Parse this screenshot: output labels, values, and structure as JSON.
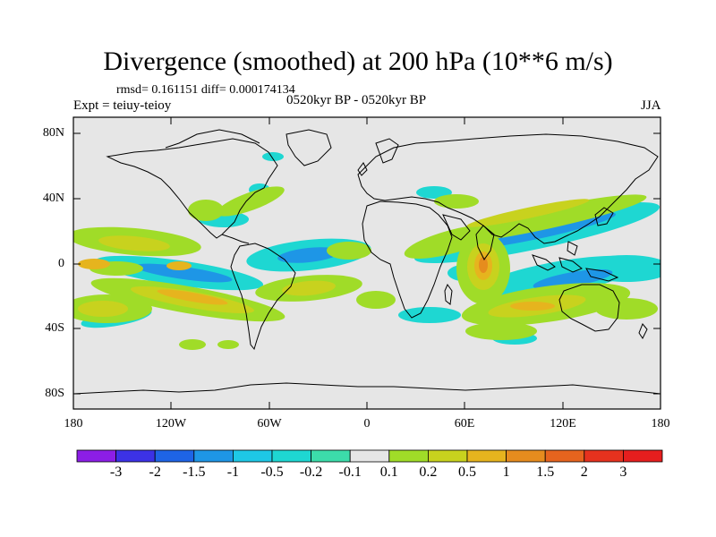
{
  "title": "Divergence (smoothed) at 200 hPa (10**6 m/s)",
  "stats": "rmsd= 0.161151 diff= 0.000174134",
  "experiment": "Expt = teiuy-teioy",
  "period": "0520kyr BP - 0520kyr BP",
  "season": "JJA",
  "lat_labels": [
    "80N",
    "40N",
    "0",
    "40S",
    "80S"
  ],
  "lon_labels": [
    "180",
    "120W",
    "60W",
    "0",
    "60E",
    "120E",
    "180"
  ],
  "colorbar": {
    "labels": [
      "-3",
      "-2",
      "-1.5",
      "-1",
      "-0.5",
      "-0.2",
      "-0.1",
      "0.1",
      "0.2",
      "0.5",
      "1",
      "1.5",
      "2",
      "3"
    ],
    "colors": [
      "#8c1ee6",
      "#3c32e6",
      "#1e64e6",
      "#1e96e6",
      "#1ec8e6",
      "#1ed7d2",
      "#3cdcaa",
      "#e6e6e6",
      "#a0dc28",
      "#c8d21e",
      "#e6b41e",
      "#e68c1e",
      "#e6641e",
      "#e6321e",
      "#e61e1e"
    ]
  },
  "colors": {
    "land_sea_background": "#e6e6e6",
    "coastline": "#000000"
  }
}
